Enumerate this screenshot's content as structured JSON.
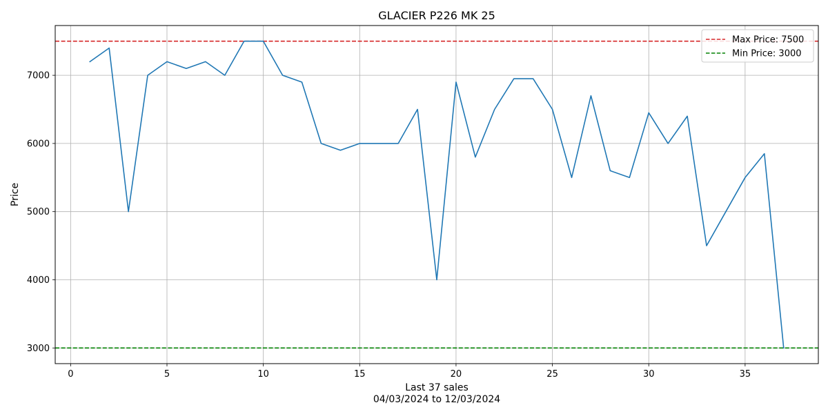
{
  "chart_data": {
    "type": "line",
    "title": "GLACIER P226 MK 25",
    "xlabel": "Last 37 sales",
    "xlabel_sub": "04/03/2024 to 12/03/2024",
    "ylabel": "Price",
    "xlim": [
      -0.8,
      38.8
    ],
    "ylim": [
      2770,
      7730
    ],
    "xticks": [
      0,
      5,
      10,
      15,
      20,
      25,
      30,
      35
    ],
    "yticks": [
      3000,
      4000,
      5000,
      6000,
      7000
    ],
    "grid": true,
    "legend_position": "top-right",
    "series": [
      {
        "x": [
          1,
          2,
          3,
          4,
          5,
          6,
          7,
          8,
          9,
          10,
          11,
          12,
          13,
          14,
          15,
          16,
          17,
          18,
          19,
          20,
          21,
          22,
          23,
          24,
          25,
          26,
          27,
          28,
          29,
          30,
          31,
          32,
          33,
          34,
          35,
          36,
          37
        ],
        "values": [
          7200,
          7400,
          5000,
          7000,
          7200,
          7100,
          7200,
          7000,
          7500,
          7500,
          7000,
          6900,
          6000,
          5900,
          6000,
          6000,
          6000,
          6500,
          4000,
          6900,
          5800,
          6500,
          6950,
          6950,
          6500,
          5500,
          6700,
          5600,
          5500,
          6450,
          6000,
          6400,
          4500,
          5000,
          5500,
          5850,
          3000
        ],
        "color": "#1f77b4"
      }
    ],
    "reference_lines": [
      {
        "label": "Max Price: 7500",
        "y": 7500,
        "color": "#d62728",
        "style": "dashed"
      },
      {
        "label": "Min Price: 3000",
        "y": 3000,
        "color": "#008000",
        "style": "dashed"
      }
    ]
  }
}
